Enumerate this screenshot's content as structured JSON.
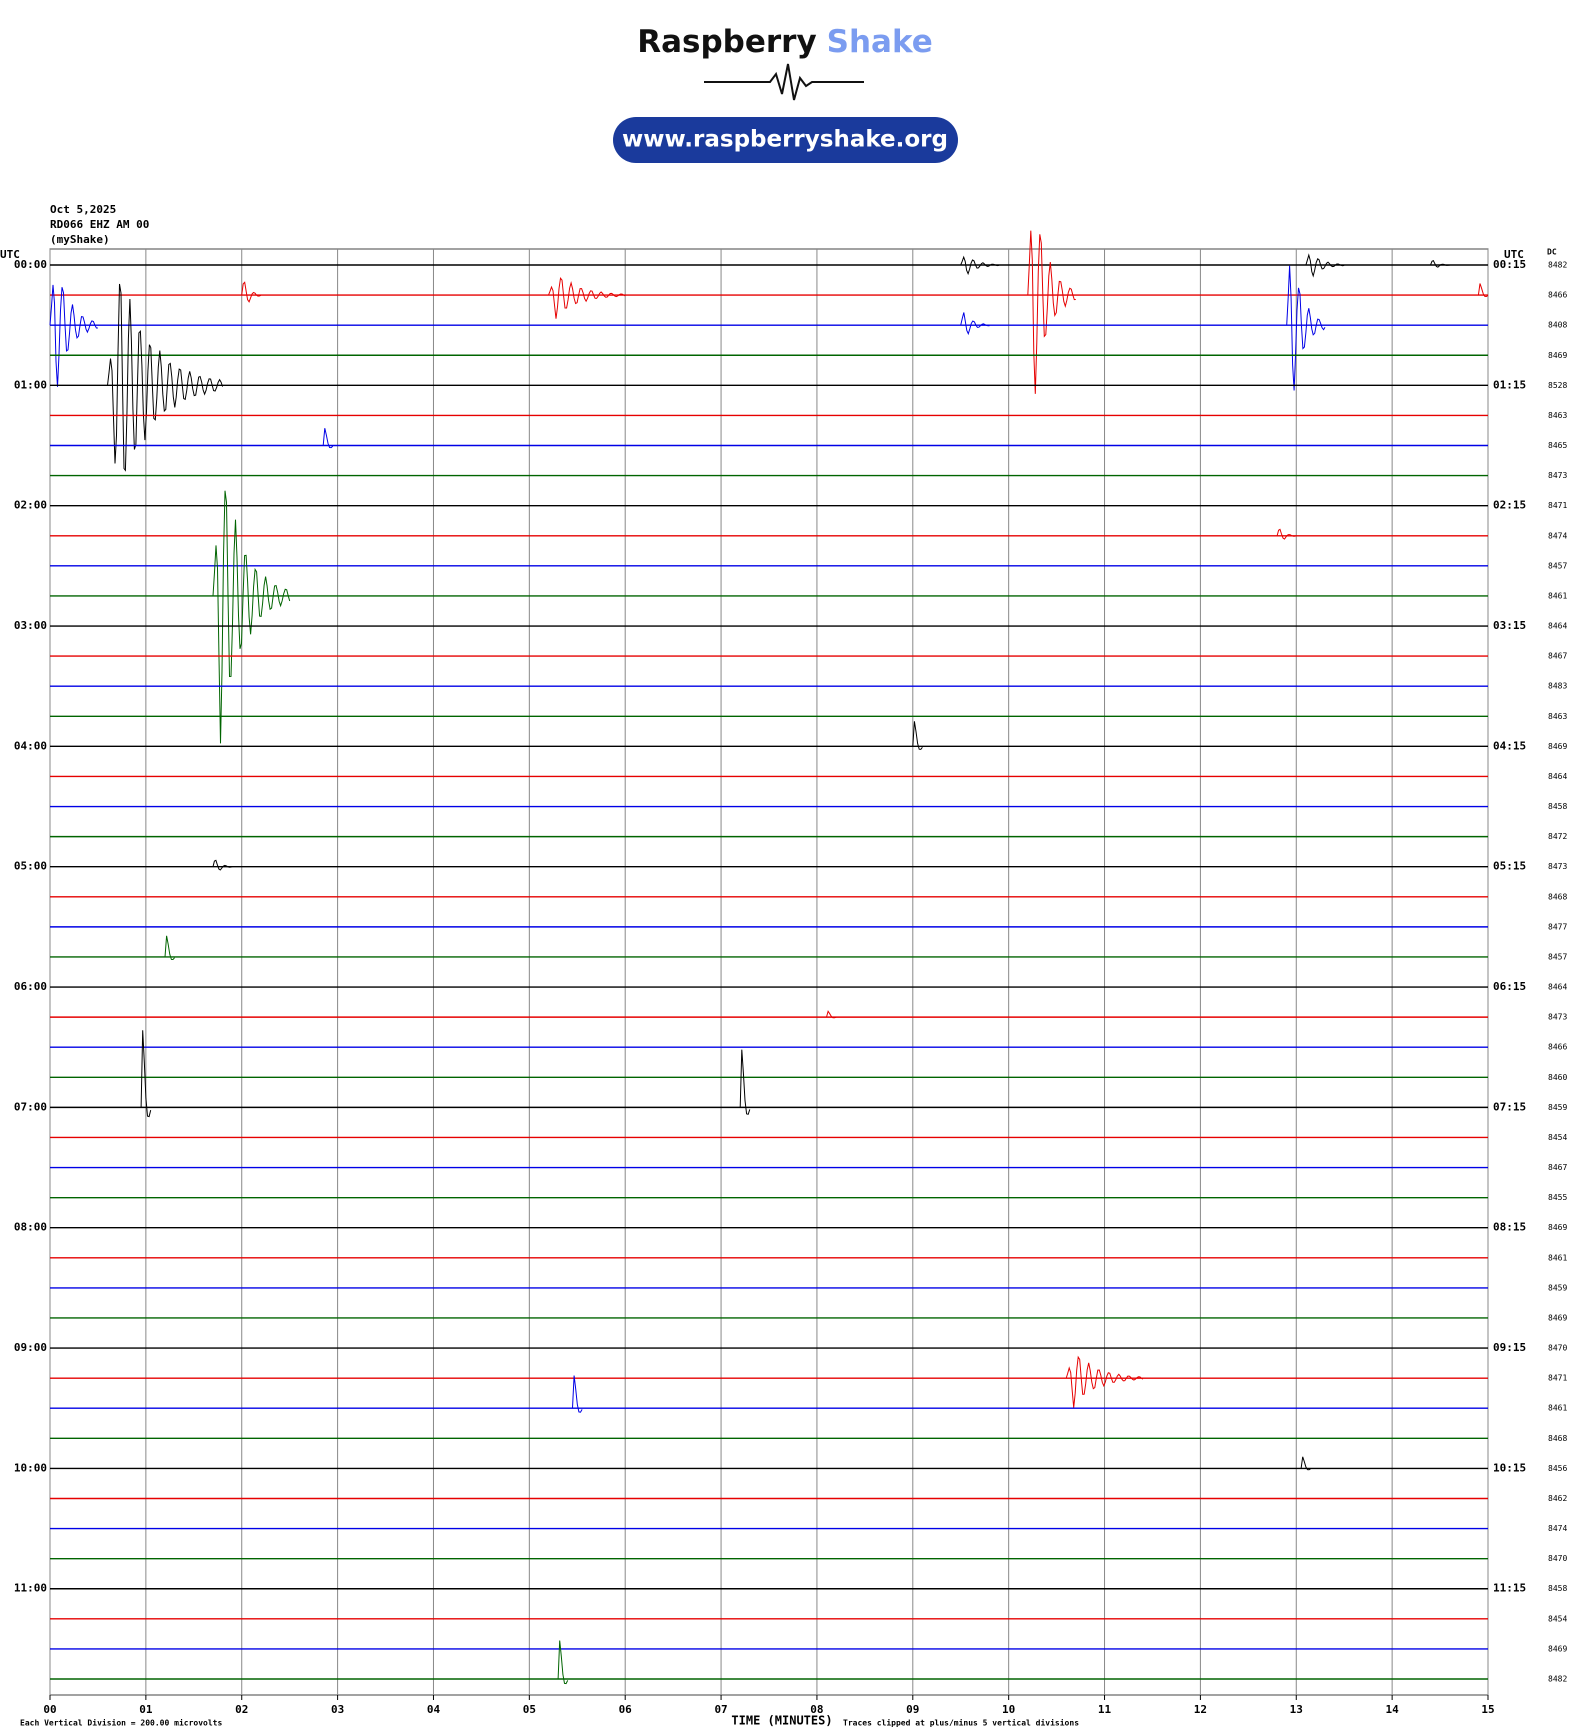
{
  "header": {
    "brand": "Raspberry",
    "brand2": "Shake",
    "url": "www.raspberryshake.org"
  },
  "chart_data": {
    "type": "helicorder",
    "date": "Oct 5,2025",
    "station": "RD066 EHZ AM 00",
    "source": "(myShake)",
    "left_axis_title": "UTC",
    "right_axis_title": "UTC",
    "dc_title": "DC",
    "xlabel": "TIME (MINUTES)",
    "scale_note": "Each Vertical Division =  200.00 microvolts",
    "clip_note": "Traces clipped at plus/minus 5 vertical divisions",
    "xlim": [
      0,
      15
    ],
    "xticks": [
      {
        "value": 0,
        "label": "00"
      },
      {
        "value": 1,
        "label": "01"
      },
      {
        "value": 2,
        "label": "02"
      },
      {
        "value": 3,
        "label": "03"
      },
      {
        "value": 4,
        "label": "04"
      },
      {
        "value": 5,
        "label": "05"
      },
      {
        "value": 6,
        "label": "06"
      },
      {
        "value": 7,
        "label": "07"
      },
      {
        "value": 8,
        "label": "08"
      },
      {
        "value": 9,
        "label": "09"
      },
      {
        "value": 10,
        "label": "10"
      },
      {
        "value": 11,
        "label": "11"
      },
      {
        "value": 12,
        "label": "12"
      },
      {
        "value": 13,
        "label": "13"
      },
      {
        "value": 14,
        "label": "14"
      },
      {
        "value": 15,
        "label": "15"
      }
    ],
    "grid": true,
    "colors": [
      "#000000",
      "#e60000",
      "#0000e6",
      "#006400"
    ],
    "left_labels": [
      "00:00",
      "01:00",
      "02:00",
      "03:00",
      "04:00",
      "05:00",
      "06:00",
      "07:00",
      "08:00",
      "09:00",
      "10:00",
      "11:00"
    ],
    "right_labels": [
      "00:15",
      "01:15",
      "02:15",
      "03:15",
      "04:15",
      "05:15",
      "06:15",
      "07:15",
      "08:15",
      "09:15",
      "10:15",
      "11:15"
    ],
    "rows": [
      {
        "dc": 8482,
        "events": [
          {
            "t": 9.5,
            "amp": 0.4,
            "dur": 0.4
          },
          {
            "t": 13.1,
            "amp": 0.5,
            "dur": 0.4
          },
          {
            "t": 14.4,
            "amp": 0.2,
            "dur": 0.2
          }
        ]
      },
      {
        "dc": 8466,
        "events": [
          {
            "t": 2.0,
            "amp": 0.6,
            "dur": 0.2
          },
          {
            "t": 5.2,
            "amp": 0.8,
            "dur": 0.8
          },
          {
            "t": 10.2,
            "amp": 4,
            "dur": 0.5
          },
          {
            "t": 14.9,
            "amp": 0.6,
            "dur": 0.1
          }
        ]
      },
      {
        "dc": 8408,
        "events": [
          {
            "t": 0.0,
            "amp": 2.5,
            "dur": 0.5
          },
          {
            "t": 9.5,
            "amp": 0.5,
            "dur": 0.3
          },
          {
            "t": 12.9,
            "amp": 3,
            "dur": 0.4
          }
        ]
      },
      {
        "dc": 8469,
        "events": []
      },
      {
        "dc": 8528,
        "events": [
          {
            "t": 0.6,
            "amp": 4,
            "dur": 1.2
          }
        ]
      },
      {
        "dc": 8463,
        "events": []
      },
      {
        "dc": 8465,
        "events": [
          {
            "t": 2.85,
            "amp": 0.9,
            "dur": 0.1
          }
        ]
      },
      {
        "dc": 8473,
        "events": []
      },
      {
        "dc": 8471,
        "events": []
      },
      {
        "dc": 8474,
        "events": [
          {
            "t": 12.8,
            "amp": 0.3,
            "dur": 0.2
          }
        ]
      },
      {
        "dc": 8457,
        "events": []
      },
      {
        "dc": 8461,
        "events": [
          {
            "t": 1.7,
            "amp": 5,
            "dur": 0.8
          }
        ]
      },
      {
        "dc": 8464,
        "events": []
      },
      {
        "dc": 8467,
        "events": []
      },
      {
        "dc": 8483,
        "events": []
      },
      {
        "dc": 8463,
        "events": []
      },
      {
        "dc": 8469,
        "events": [
          {
            "t": 9.0,
            "amp": 1.3,
            "dur": 0.1
          }
        ]
      },
      {
        "dc": 8464,
        "events": []
      },
      {
        "dc": 8458,
        "events": []
      },
      {
        "dc": 8472,
        "events": []
      },
      {
        "dc": 8473,
        "events": [
          {
            "t": 1.7,
            "amp": 0.3,
            "dur": 0.2
          }
        ]
      },
      {
        "dc": 8468,
        "events": []
      },
      {
        "dc": 8477,
        "events": []
      },
      {
        "dc": 8457,
        "events": [
          {
            "t": 1.2,
            "amp": 1.1,
            "dur": 0.1
          }
        ]
      },
      {
        "dc": 8464,
        "events": []
      },
      {
        "dc": 8473,
        "events": [
          {
            "t": 8.1,
            "amp": 0.3,
            "dur": 0.1
          }
        ]
      },
      {
        "dc": 8466,
        "events": []
      },
      {
        "dc": 8460,
        "events": []
      },
      {
        "dc": 8459,
        "events": [
          {
            "t": 0.95,
            "amp": 4,
            "dur": 0.1
          },
          {
            "t": 7.2,
            "amp": 3,
            "dur": 0.1
          }
        ]
      },
      {
        "dc": 8454,
        "events": []
      },
      {
        "dc": 8467,
        "events": []
      },
      {
        "dc": 8455,
        "events": []
      },
      {
        "dc": 8469,
        "events": []
      },
      {
        "dc": 8461,
        "events": []
      },
      {
        "dc": 8459,
        "events": []
      },
      {
        "dc": 8469,
        "events": []
      },
      {
        "dc": 8470,
        "events": []
      },
      {
        "dc": 8471,
        "events": [
          {
            "t": 10.6,
            "amp": 1,
            "dur": 0.8
          }
        ]
      },
      {
        "dc": 8461,
        "events": [
          {
            "t": 5.45,
            "amp": 1.7,
            "dur": 0.1
          }
        ]
      },
      {
        "dc": 8468,
        "events": []
      },
      {
        "dc": 8456,
        "events": [
          {
            "t": 13.05,
            "amp": 0.6,
            "dur": 0.1
          }
        ]
      },
      {
        "dc": 8462,
        "events": []
      },
      {
        "dc": 8474,
        "events": []
      },
      {
        "dc": 8470,
        "events": []
      },
      {
        "dc": 8458,
        "events": []
      },
      {
        "dc": 8454,
        "events": []
      },
      {
        "dc": 8469,
        "events": []
      },
      {
        "dc": 8482,
        "events": [
          {
            "t": 5.3,
            "amp": 2,
            "dur": 0.1
          }
        ]
      }
    ]
  }
}
